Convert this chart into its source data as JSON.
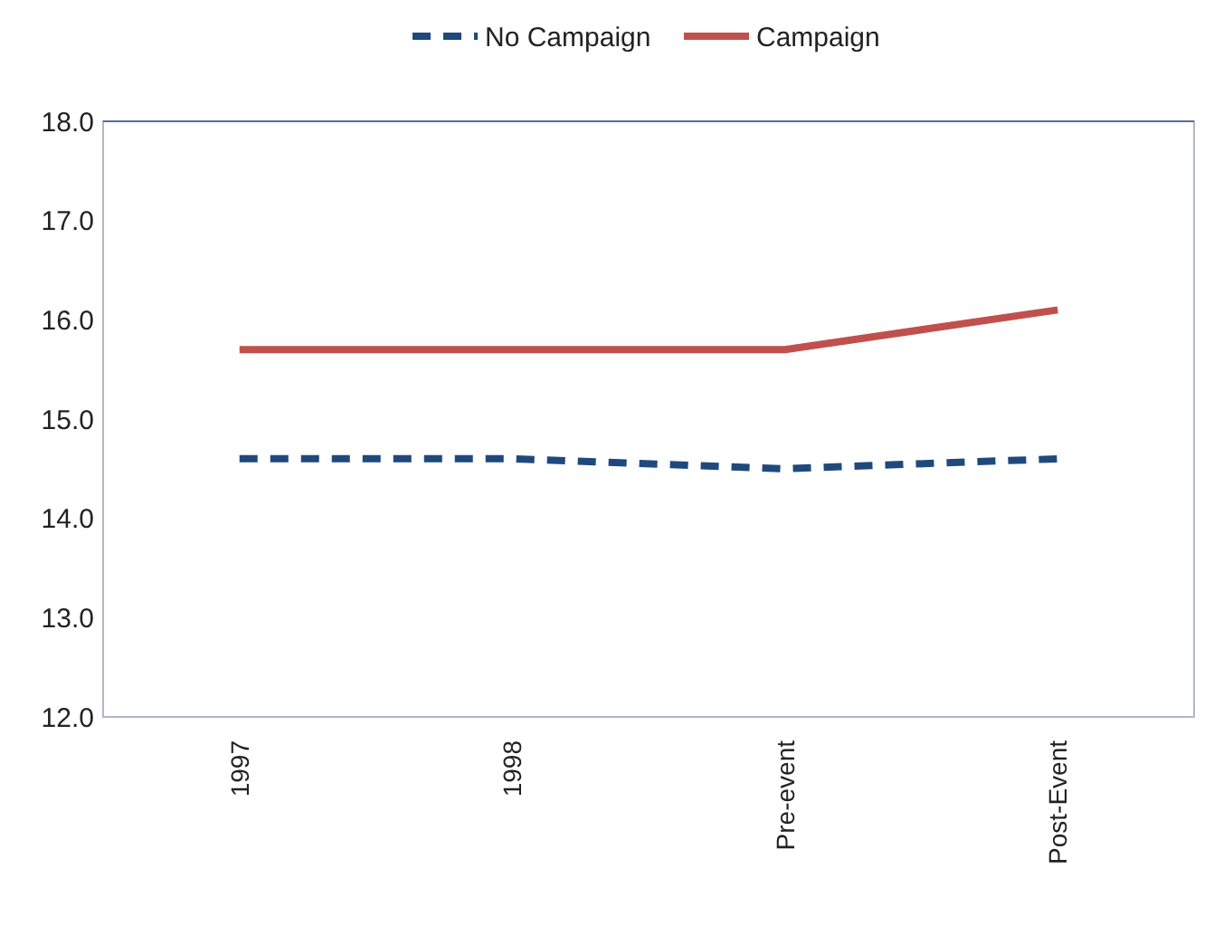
{
  "chart_data": {
    "type": "line",
    "categories": [
      "1997",
      "1998",
      "Pre-event",
      "Post-Event"
    ],
    "series": [
      {
        "name": "No Campaign",
        "color": "#1f497d",
        "values": [
          14.6,
          14.6,
          14.5,
          14.6
        ],
        "line_style": "dashed"
      },
      {
        "name": "Campaign",
        "color": "#c0504d",
        "values": [
          15.7,
          15.7,
          15.7,
          16.1
        ],
        "line_style": "solid"
      }
    ],
    "ylim": [
      12,
      18
    ],
    "yticks": [
      {
        "value": 12,
        "label": "12.0"
      },
      {
        "value": 13,
        "label": "13.0"
      },
      {
        "value": 14,
        "label": "14.0"
      },
      {
        "value": 15,
        "label": "15.0"
      },
      {
        "value": 16,
        "label": "16.0"
      },
      {
        "value": 17,
        "label": "17.0"
      },
      {
        "value": 18,
        "label": "18.0"
      }
    ],
    "grid": false,
    "legend": "top",
    "marker": "none"
  }
}
